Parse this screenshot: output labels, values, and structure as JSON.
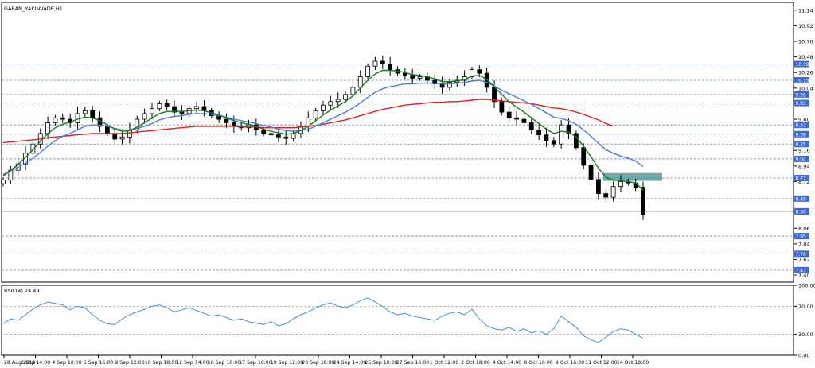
{
  "chart_data": [
    {
      "type": "candlestick",
      "title": "GARAN_YAKINVADE,H1",
      "ylim": [
        7.3,
        11.25
      ],
      "y_ticks": [
        "11.14",
        "10.92",
        "10.70",
        "10.48",
        "10.26",
        "10.04",
        "9.82",
        "9.60",
        "9.38",
        "9.16",
        "8.94",
        "8.72",
        "8.50",
        "8.28",
        "8.06",
        "7.84",
        "7.62",
        "7.40"
      ],
      "x_ticks": [
        "28 Aug 2019",
        "2 Sep 14:00",
        "4 Sep 10:00",
        "5 Sep 16:00",
        "9 Sep 12:00",
        "10 Sep 18:00",
        "12 Sep 14:00",
        "16 Sep 10:00",
        "17 Sep 16:00",
        "19 Sep 12:00",
        "20 Sep 18:00",
        "24 Sep 14:00",
        "26 Sep 10:00",
        "27 Sep 16:00",
        "1 Oct 12:00",
        "2 Oct 18:00",
        "4 Oct 14:00",
        "8 Oct 10:00",
        "9 Oct 16:00",
        "11 Oct 12:00",
        "14 Oct 18:00"
      ],
      "level_labels": [
        "10.38",
        "10.15",
        "9.95",
        "9.83",
        "9.52",
        "9.39",
        "9.25",
        "9.04",
        "8.77",
        "8.48",
        "8.30",
        "7.95",
        "7.70",
        "7.47"
      ],
      "price": [
        8.74,
        8.88,
        8.97,
        9.12,
        9.25,
        9.4,
        9.55,
        9.62,
        9.6,
        9.55,
        9.68,
        9.72,
        9.62,
        9.5,
        9.4,
        9.32,
        9.35,
        9.45,
        9.6,
        9.68,
        9.75,
        9.82,
        9.78,
        9.7,
        9.68,
        9.75,
        9.78,
        9.72,
        9.65,
        9.6,
        9.55,
        9.5,
        9.48,
        9.52,
        9.45,
        9.4,
        9.38,
        9.35,
        9.33,
        9.4,
        9.5,
        9.62,
        9.72,
        9.8,
        9.85,
        9.88,
        9.95,
        10.05,
        10.2,
        10.35,
        10.42,
        10.38,
        10.3,
        10.25,
        10.22,
        10.18,
        10.2,
        10.15,
        10.1,
        10.05,
        10.12,
        10.15,
        10.2,
        10.3,
        10.25,
        10.05,
        9.85,
        9.7,
        9.62,
        9.6,
        9.55,
        9.45,
        9.38,
        9.3,
        9.25,
        9.52,
        9.4,
        9.2,
        8.95,
        8.75,
        8.55,
        8.5,
        8.65,
        8.72,
        8.7,
        8.64,
        8.25
      ],
      "ma_fast": [
        8.8,
        8.88,
        8.96,
        9.06,
        9.17,
        9.29,
        9.4,
        9.48,
        9.53,
        9.56,
        9.6,
        9.63,
        9.62,
        9.58,
        9.52,
        9.46,
        9.43,
        9.44,
        9.49,
        9.55,
        9.62,
        9.68,
        9.71,
        9.71,
        9.71,
        9.72,
        9.73,
        9.72,
        9.69,
        9.66,
        9.62,
        9.58,
        9.55,
        9.53,
        9.5,
        9.46,
        9.43,
        9.41,
        9.39,
        9.4,
        9.44,
        9.5,
        9.58,
        9.66,
        9.73,
        9.79,
        9.85,
        9.93,
        10.04,
        10.15,
        10.24,
        10.29,
        10.29,
        10.28,
        10.26,
        10.23,
        10.22,
        10.2,
        10.17,
        10.13,
        10.13,
        10.14,
        10.16,
        10.21,
        10.22,
        10.16,
        10.06,
        9.95,
        9.85,
        9.77,
        9.7,
        9.62,
        9.54,
        9.46,
        9.4,
        9.43,
        9.42,
        9.35,
        9.22,
        9.07,
        8.91,
        8.78,
        8.74,
        8.73,
        8.72,
        8.7,
        8.6
      ],
      "ma_mid": [
        8.82,
        8.87,
        8.92,
        8.98,
        9.05,
        9.13,
        9.22,
        9.3,
        9.36,
        9.4,
        9.45,
        9.5,
        9.52,
        9.52,
        9.5,
        9.47,
        9.45,
        9.45,
        9.47,
        9.5,
        9.54,
        9.59,
        9.62,
        9.64,
        9.65,
        9.67,
        9.68,
        9.68,
        9.67,
        9.65,
        9.63,
        9.6,
        9.58,
        9.56,
        9.54,
        9.51,
        9.49,
        9.46,
        9.44,
        9.43,
        9.44,
        9.46,
        9.5,
        9.55,
        9.6,
        9.65,
        9.7,
        9.76,
        9.83,
        9.91,
        9.98,
        10.03,
        10.06,
        10.08,
        10.1,
        10.1,
        10.11,
        10.11,
        10.11,
        10.1,
        10.1,
        10.11,
        10.12,
        10.14,
        10.15,
        10.12,
        10.07,
        10.01,
        9.96,
        9.91,
        9.86,
        9.81,
        9.75,
        9.69,
        9.63,
        9.61,
        9.58,
        9.53,
        9.45,
        9.36,
        9.26,
        9.17,
        9.12,
        9.08,
        9.05,
        9.01,
        8.93
      ],
      "ma_slow": [
        9.27,
        9.28,
        9.29,
        9.3,
        9.31,
        9.32,
        9.34,
        9.35,
        9.36,
        9.37,
        9.38,
        9.39,
        9.4,
        9.4,
        9.4,
        9.4,
        9.4,
        9.41,
        9.42,
        9.43,
        9.44,
        9.45,
        9.46,
        9.47,
        9.48,
        9.49,
        9.5,
        9.5,
        9.5,
        9.5,
        9.5,
        9.5,
        9.49,
        9.49,
        9.49,
        9.48,
        9.48,
        9.48,
        9.48,
        9.48,
        9.49,
        9.5,
        9.51,
        9.53,
        9.55,
        9.57,
        9.59,
        9.62,
        9.65,
        9.68,
        9.71,
        9.74,
        9.76,
        9.78,
        9.8,
        9.81,
        9.82,
        9.83,
        9.84,
        9.84,
        9.85,
        9.85,
        9.86,
        9.87,
        9.88,
        9.88,
        9.87,
        9.86,
        9.85,
        9.84,
        9.83,
        9.82,
        9.8,
        9.78,
        9.76,
        9.75,
        9.73,
        9.7,
        9.67,
        9.63,
        9.59,
        9.54,
        9.5,
        null,
        null,
        null,
        null
      ],
      "support_zone": [
        8.73,
        8.84
      ],
      "current_level": 8.3,
      "colors": {
        "ma_fast": "#1a7a1a",
        "ma_mid": "#4a7be0",
        "ma_slow": "#e02020",
        "zone": "#5f9ea0",
        "grid": "#6a86c8",
        "candle": "#000000"
      }
    },
    {
      "type": "line",
      "title": "RSI(14) 24.49",
      "ylim": [
        0,
        100
      ],
      "y_ticks": [
        "100.00",
        "70.00",
        "30.00",
        "0.00"
      ],
      "values": [
        45,
        52,
        50,
        58,
        66,
        72,
        76,
        74,
        72,
        65,
        70,
        68,
        58,
        50,
        45,
        44,
        52,
        58,
        62,
        66,
        70,
        72,
        68,
        62,
        65,
        68,
        64,
        60,
        56,
        58,
        54,
        50,
        52,
        48,
        46,
        44,
        48,
        42,
        45,
        52,
        58,
        62,
        68,
        72,
        75,
        70,
        68,
        72,
        78,
        82,
        76,
        70,
        62,
        58,
        60,
        56,
        54,
        52,
        50,
        56,
        60,
        62,
        58,
        66,
        52,
        42,
        38,
        36,
        40,
        34,
        38,
        32,
        35,
        30,
        38,
        56,
        48,
        40,
        28,
        22,
        18,
        26,
        34,
        38,
        36,
        30,
        24.49
      ],
      "colors": {
        "line": "#4a90d9",
        "level": "#a0a0a0"
      }
    }
  ]
}
